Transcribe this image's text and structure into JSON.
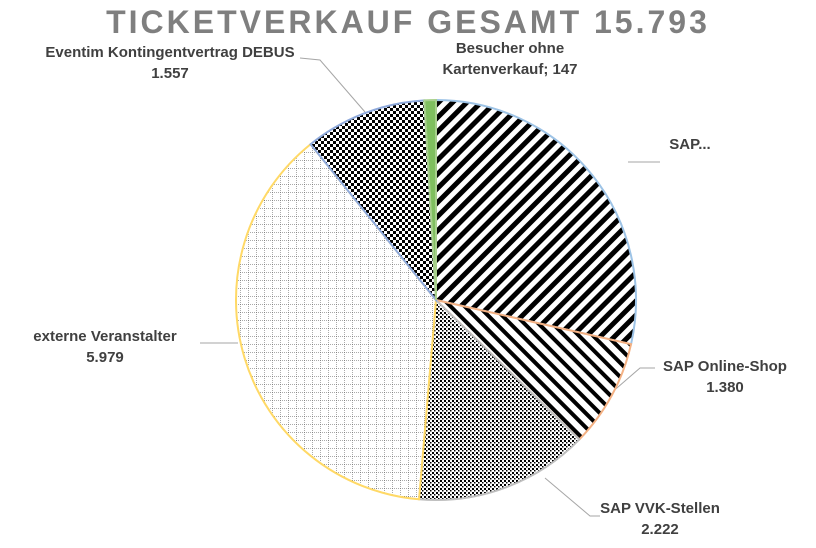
{
  "chart_data": {
    "type": "pie",
    "title": "TICKETVERKAUF GESAMT 15.793",
    "categories": [
      "SAP...",
      "SAP Online-Shop",
      "SAP VVK-Stellen",
      "externe Veranstalter",
      "Eventim Kontingentvertrag DEBUS",
      "Besucher ohne Kartenverkauf;"
    ],
    "values": [
      4508,
      1380,
      2222,
      5979,
      1557,
      147
    ],
    "value_labels": [
      null,
      "1.380",
      "2.222",
      "5.979",
      "1.557",
      "147"
    ],
    "colors": [
      "#9dc3e6",
      "#f4b183",
      "#bfbfbf",
      "#ffd966",
      "#8faadc",
      "#a9d18e"
    ]
  }
}
